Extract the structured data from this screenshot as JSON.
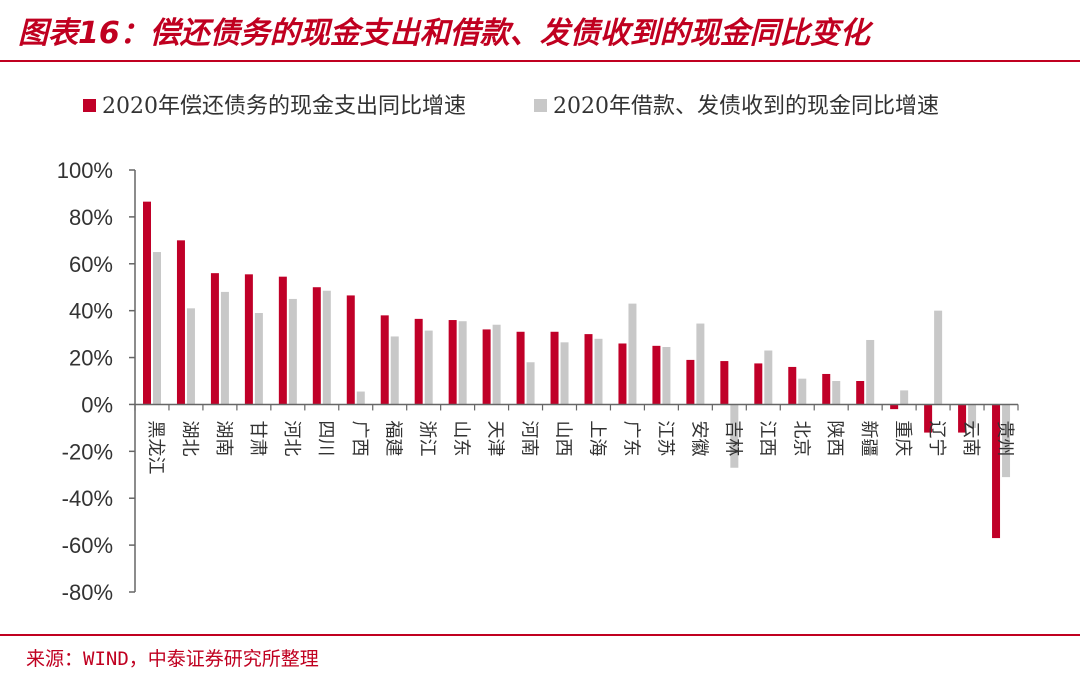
{
  "header": {
    "title": "图表16：偿还债务的现金支出和借款、发债收到的现金同比变化"
  },
  "footer": {
    "source": "来源：WIND，中泰证券研究所整理"
  },
  "colors": {
    "accent": "#c00020",
    "series1": "#c00028",
    "series2": "#c8c8c8",
    "axis": "#666666"
  },
  "chart_data": {
    "type": "bar",
    "title": "",
    "xlabel": "",
    "ylabel": "",
    "ylim": [
      -80,
      100
    ],
    "yticks": [
      "100%",
      "80%",
      "60%",
      "40%",
      "20%",
      "0%",
      "-20%",
      "-40%",
      "-60%",
      "-80%"
    ],
    "legend_position": "top",
    "grid": false,
    "categories": [
      "黑龙江",
      "湖北",
      "湖南",
      "甘肃",
      "河北",
      "四川",
      "广西",
      "福建",
      "浙江",
      "山东",
      "天津",
      "河南",
      "山西",
      "上海",
      "广东",
      "江苏",
      "安徽",
      "吉林",
      "江西",
      "北京",
      "陕西",
      "新疆",
      "重庆",
      "辽宁",
      "云南",
      "贵州"
    ],
    "series": [
      {
        "name": "2020年偿还债务的现金支出同比增速",
        "values": [
          86.5,
          70,
          56,
          55.5,
          54.5,
          50,
          46.5,
          38,
          36.5,
          36,
          32,
          31,
          31,
          30,
          26,
          25,
          19,
          18.5,
          17.5,
          16,
          13,
          10,
          -2,
          -12,
          -12,
          -57
        ]
      },
      {
        "name": "2020年借款、发债收到的现金同比增速",
        "values": [
          65,
          41,
          48,
          39,
          45,
          48.5,
          5.5,
          29,
          31.5,
          35.5,
          34,
          18,
          26.5,
          28,
          43,
          24.5,
          34.5,
          -27,
          23,
          11,
          10,
          27.5,
          6,
          40,
          -10,
          -31
        ]
      }
    ]
  }
}
